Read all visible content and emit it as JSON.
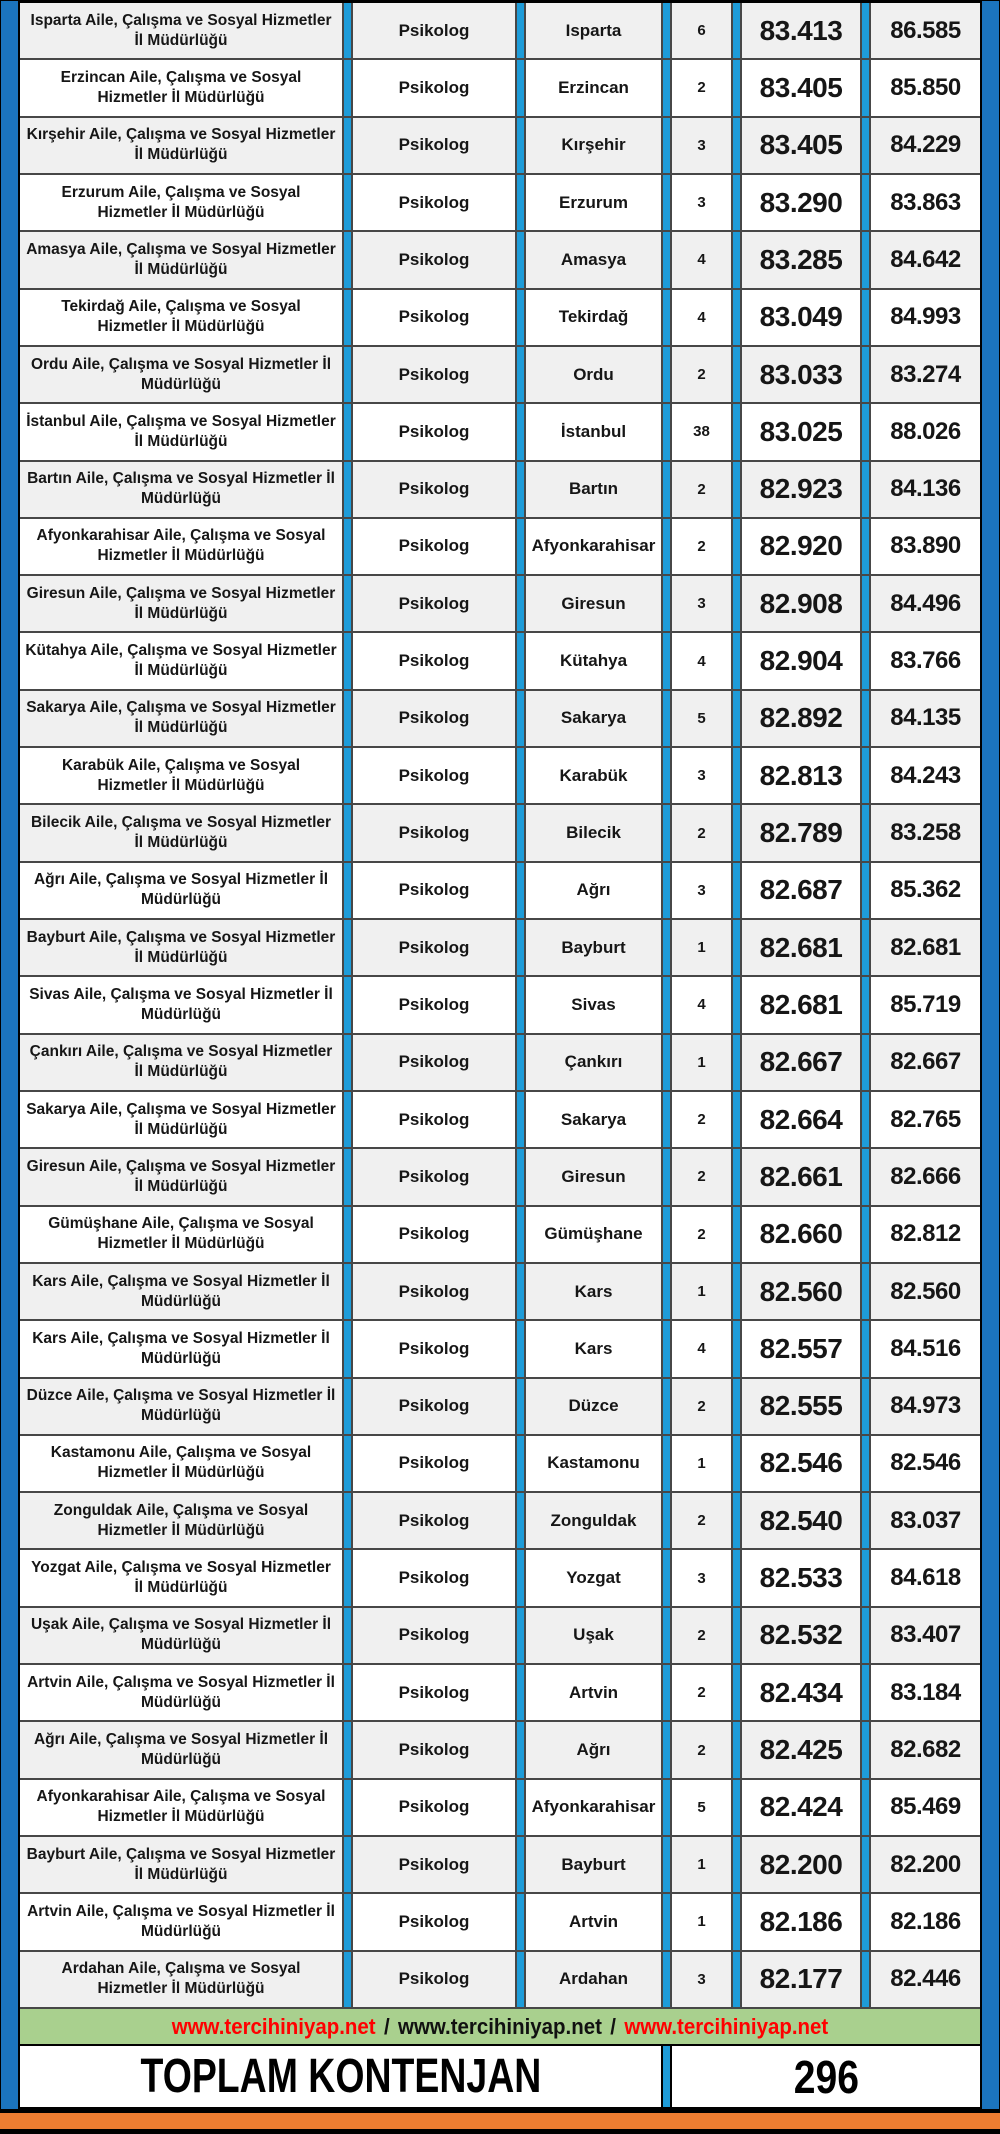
{
  "table": {
    "rows": [
      {
        "institution": "Isparta Aile, Çalışma ve Sosyal Hizmetler İl Müdürlüğü",
        "position": "Psikolog",
        "province": "Isparta",
        "quota": "6",
        "score_min": "83.413",
        "score_max": "86.585"
      },
      {
        "institution": "Erzincan Aile, Çalışma ve Sosyal Hizmetler İl Müdürlüğü",
        "position": "Psikolog",
        "province": "Erzincan",
        "quota": "2",
        "score_min": "83.405",
        "score_max": "85.850"
      },
      {
        "institution": "Kırşehir Aile, Çalışma ve Sosyal Hizmetler İl Müdürlüğü",
        "position": "Psikolog",
        "province": "Kırşehir",
        "quota": "3",
        "score_min": "83.405",
        "score_max": "84.229"
      },
      {
        "institution": "Erzurum Aile, Çalışma ve Sosyal Hizmetler İl Müdürlüğü",
        "position": "Psikolog",
        "province": "Erzurum",
        "quota": "3",
        "score_min": "83.290",
        "score_max": "83.863"
      },
      {
        "institution": "Amasya Aile, Çalışma ve Sosyal Hizmetler İl Müdürlüğü",
        "position": "Psikolog",
        "province": "Amasya",
        "quota": "4",
        "score_min": "83.285",
        "score_max": "84.642"
      },
      {
        "institution": "Tekirdağ Aile, Çalışma ve Sosyal Hizmetler İl Müdürlüğü",
        "position": "Psikolog",
        "province": "Tekirdağ",
        "quota": "4",
        "score_min": "83.049",
        "score_max": "84.993"
      },
      {
        "institution": "Ordu Aile, Çalışma ve Sosyal Hizmetler İl Müdürlüğü",
        "position": "Psikolog",
        "province": "Ordu",
        "quota": "2",
        "score_min": "83.033",
        "score_max": "83.274"
      },
      {
        "institution": "İstanbul Aile, Çalışma ve Sosyal Hizmetler İl Müdürlüğü",
        "position": "Psikolog",
        "province": "İstanbul",
        "quota": "38",
        "score_min": "83.025",
        "score_max": "88.026"
      },
      {
        "institution": "Bartın Aile, Çalışma ve Sosyal Hizmetler İl Müdürlüğü",
        "position": "Psikolog",
        "province": "Bartın",
        "quota": "2",
        "score_min": "82.923",
        "score_max": "84.136"
      },
      {
        "institution": "Afyonkarahisar Aile, Çalışma ve Sosyal Hizmetler İl Müdürlüğü",
        "position": "Psikolog",
        "province": "Afyonkarahisar",
        "quota": "2",
        "score_min": "82.920",
        "score_max": "83.890"
      },
      {
        "institution": "Giresun Aile, Çalışma ve Sosyal Hizmetler İl Müdürlüğü",
        "position": "Psikolog",
        "province": "Giresun",
        "quota": "3",
        "score_min": "82.908",
        "score_max": "84.496"
      },
      {
        "institution": "Kütahya Aile, Çalışma ve Sosyal Hizmetler İl Müdürlüğü",
        "position": "Psikolog",
        "province": "Kütahya",
        "quota": "4",
        "score_min": "82.904",
        "score_max": "83.766"
      },
      {
        "institution": "Sakarya Aile, Çalışma ve Sosyal Hizmetler İl Müdürlüğü",
        "position": "Psikolog",
        "province": "Sakarya",
        "quota": "5",
        "score_min": "82.892",
        "score_max": "84.135"
      },
      {
        "institution": "Karabük Aile, Çalışma ve Sosyal Hizmetler İl Müdürlüğü",
        "position": "Psikolog",
        "province": "Karabük",
        "quota": "3",
        "score_min": "82.813",
        "score_max": "84.243"
      },
      {
        "institution": "Bilecik Aile, Çalışma ve Sosyal Hizmetler İl Müdürlüğü",
        "position": "Psikolog",
        "province": "Bilecik",
        "quota": "2",
        "score_min": "82.789",
        "score_max": "83.258"
      },
      {
        "institution": "Ağrı Aile, Çalışma ve Sosyal Hizmetler İl Müdürlüğü",
        "position": "Psikolog",
        "province": "Ağrı",
        "quota": "3",
        "score_min": "82.687",
        "score_max": "85.362"
      },
      {
        "institution": "Bayburt Aile, Çalışma ve Sosyal Hizmetler İl Müdürlüğü",
        "position": "Psikolog",
        "province": "Bayburt",
        "quota": "1",
        "score_min": "82.681",
        "score_max": "82.681"
      },
      {
        "institution": "Sivas Aile, Çalışma ve Sosyal Hizmetler İl Müdürlüğü",
        "position": "Psikolog",
        "province": "Sivas",
        "quota": "4",
        "score_min": "82.681",
        "score_max": "85.719"
      },
      {
        "institution": "Çankırı Aile, Çalışma ve Sosyal Hizmetler İl Müdürlüğü",
        "position": "Psikolog",
        "province": "Çankırı",
        "quota": "1",
        "score_min": "82.667",
        "score_max": "82.667"
      },
      {
        "institution": "Sakarya Aile, Çalışma ve Sosyal Hizmetler İl Müdürlüğü",
        "position": "Psikolog",
        "province": "Sakarya",
        "quota": "2",
        "score_min": "82.664",
        "score_max": "82.765"
      },
      {
        "institution": "Giresun Aile, Çalışma ve Sosyal Hizmetler İl Müdürlüğü",
        "position": "Psikolog",
        "province": "Giresun",
        "quota": "2",
        "score_min": "82.661",
        "score_max": "82.666"
      },
      {
        "institution": "Gümüşhane Aile, Çalışma ve Sosyal Hizmetler İl Müdürlüğü",
        "position": "Psikolog",
        "province": "Gümüşhane",
        "quota": "2",
        "score_min": "82.660",
        "score_max": "82.812"
      },
      {
        "institution": "Kars Aile, Çalışma ve Sosyal Hizmetler İl Müdürlüğü",
        "position": "Psikolog",
        "province": "Kars",
        "quota": "1",
        "score_min": "82.560",
        "score_max": "82.560"
      },
      {
        "institution": "Kars Aile, Çalışma ve Sosyal Hizmetler İl Müdürlüğü",
        "position": "Psikolog",
        "province": "Kars",
        "quota": "4",
        "score_min": "82.557",
        "score_max": "84.516"
      },
      {
        "institution": "Düzce Aile, Çalışma ve Sosyal Hizmetler İl Müdürlüğü",
        "position": "Psikolog",
        "province": "Düzce",
        "quota": "2",
        "score_min": "82.555",
        "score_max": "84.973"
      },
      {
        "institution": "Kastamonu Aile, Çalışma ve Sosyal Hizmetler İl Müdürlüğü",
        "position": "Psikolog",
        "province": "Kastamonu",
        "quota": "1",
        "score_min": "82.546",
        "score_max": "82.546"
      },
      {
        "institution": "Zonguldak Aile, Çalışma ve Sosyal Hizmetler İl Müdürlüğü",
        "position": "Psikolog",
        "province": "Zonguldak",
        "quota": "2",
        "score_min": "82.540",
        "score_max": "83.037"
      },
      {
        "institution": "Yozgat Aile, Çalışma ve Sosyal Hizmetler İl Müdürlüğü",
        "position": "Psikolog",
        "province": "Yozgat",
        "quota": "3",
        "score_min": "82.533",
        "score_max": "84.618"
      },
      {
        "institution": "Uşak Aile, Çalışma ve Sosyal Hizmetler İl Müdürlüğü",
        "position": "Psikolog",
        "province": "Uşak",
        "quota": "2",
        "score_min": "82.532",
        "score_max": "83.407"
      },
      {
        "institution": "Artvin Aile, Çalışma ve Sosyal Hizmetler İl Müdürlüğü",
        "position": "Psikolog",
        "province": "Artvin",
        "quota": "2",
        "score_min": "82.434",
        "score_max": "83.184"
      },
      {
        "institution": "Ağrı Aile, Çalışma ve Sosyal Hizmetler İl Müdürlüğü",
        "position": "Psikolog",
        "province": "Ağrı",
        "quota": "2",
        "score_min": "82.425",
        "score_max": "82.682"
      },
      {
        "institution": "Afyonkarahisar Aile, Çalışma ve Sosyal Hizmetler İl Müdürlüğü",
        "position": "Psikolog",
        "province": "Afyonkarahisar",
        "quota": "5",
        "score_min": "82.424",
        "score_max": "85.469"
      },
      {
        "institution": "Bayburt Aile, Çalışma ve Sosyal Hizmetler İl Müdürlüğü",
        "position": "Psikolog",
        "province": "Bayburt",
        "quota": "1",
        "score_min": "82.200",
        "score_max": "82.200"
      },
      {
        "institution": "Artvin Aile, Çalışma ve Sosyal Hizmetler İl Müdürlüğü",
        "position": "Psikolog",
        "province": "Artvin",
        "quota": "1",
        "score_min": "82.186",
        "score_max": "82.186"
      },
      {
        "institution": "Ardahan Aile, Çalışma ve Sosyal Hizmetler İl Müdürlüğü",
        "position": "Psikolog",
        "province": "Ardahan",
        "quota": "3",
        "score_min": "82.177",
        "score_max": "82.446"
      }
    ]
  },
  "footer": {
    "url_1": "www.tercihiniyap.net",
    "separator": "/",
    "url_2": "www.tercihiniyap.net",
    "url_3": "www.tercihiniyap.net",
    "total_label": "TOPLAM KONTENJAN",
    "total_value": "296"
  },
  "colors": {
    "side_bar_blue": "#1B74BE",
    "column_divider_blue": "#1E9CD9",
    "banner_green": "#A9D08E",
    "url_red": "#FF0000",
    "orange_bar": "#ED7D31",
    "row_alt_gray": "#F0F0F0",
    "grid_line": "#474747"
  }
}
